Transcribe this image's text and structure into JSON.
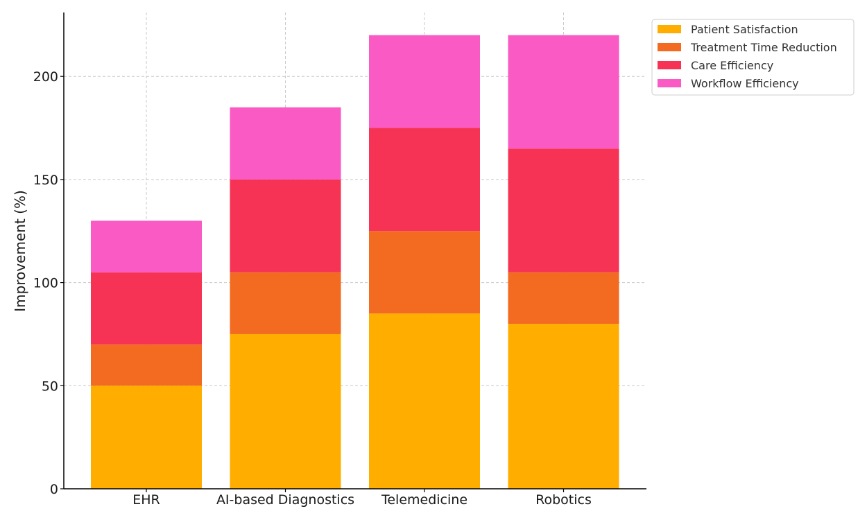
{
  "chart_data": {
    "type": "bar",
    "stacked": true,
    "categories": [
      "EHR",
      "AI-based Diagnostics",
      "Telemedicine",
      "Robotics"
    ],
    "series": [
      {
        "name": "Patient Satisfaction",
        "color": "#FFAE00",
        "values": [
          50,
          75,
          85,
          80
        ]
      },
      {
        "name": "Treatment Time Reduction",
        "color": "#F26B21",
        "values": [
          20,
          30,
          40,
          25
        ]
      },
      {
        "name": "Care Efficiency",
        "color": "#F73355",
        "values": [
          35,
          45,
          50,
          60
        ]
      },
      {
        "name": "Workflow Efficiency",
        "color": "#F95AC3",
        "values": [
          25,
          35,
          45,
          55
        ]
      }
    ],
    "title": "",
    "xlabel": "",
    "ylabel": "Improvement (%)",
    "ylim": [
      0,
      231
    ],
    "yticks": [
      0,
      50,
      100,
      150,
      200
    ],
    "grid": true,
    "legend_position": "outside-top-right"
  }
}
